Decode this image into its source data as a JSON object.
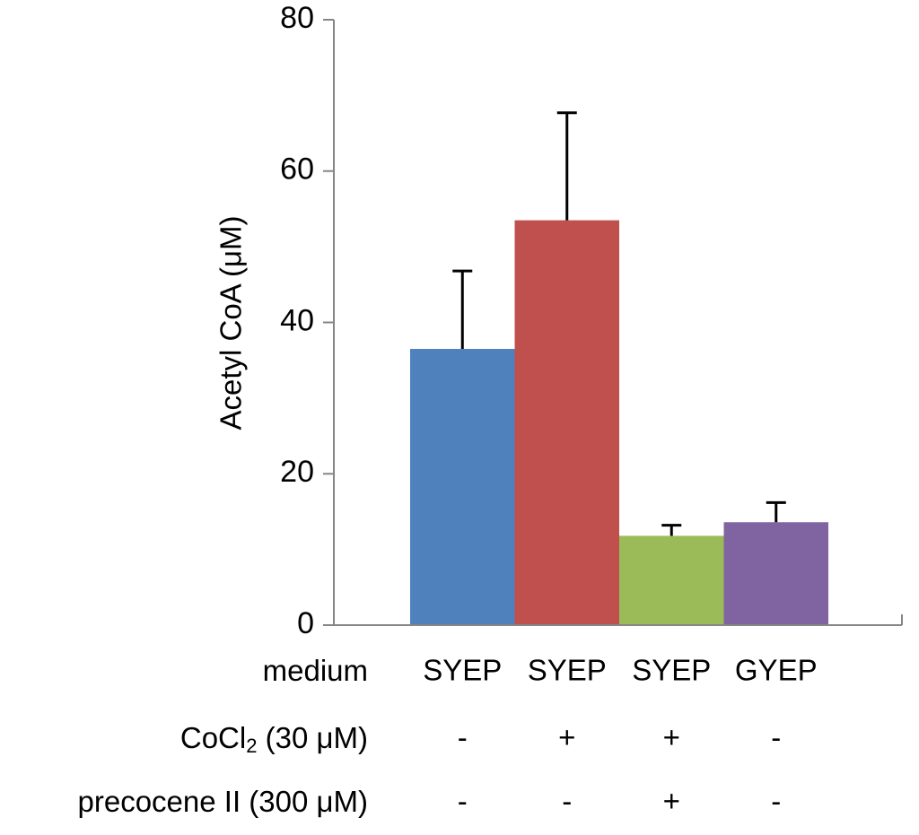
{
  "chart_data": {
    "type": "bar",
    "title": "",
    "xlabel": "",
    "ylabel": "Acetyl CoA (μM)",
    "ylim": [
      0,
      80
    ],
    "yticks": [
      "0",
      "20",
      "40",
      "60",
      "80"
    ],
    "grid": false,
    "categories": [
      "SYEP",
      "SYEP",
      "SYEP",
      "GYEP"
    ],
    "values": [
      36.5,
      53.5,
      11.8,
      13.6
    ],
    "error_upper": [
      10.3,
      14.2,
      1.4,
      2.6
    ],
    "colors": [
      "#4F81BD",
      "#C0504D",
      "#9BBB59",
      "#8064A2"
    ],
    "conditions": [
      {
        "label_main": "medium",
        "label_sub": "",
        "label_tail": "",
        "values": [
          "SYEP",
          "SYEP",
          "SYEP",
          "GYEP"
        ]
      },
      {
        "label_main": "CoCl",
        "label_sub": "2",
        "label_tail": " (30 μM)",
        "values": [
          "-",
          "+",
          "+",
          "-"
        ]
      },
      {
        "label_main": "precocene II (300 μM)",
        "label_sub": "",
        "label_tail": "",
        "values": [
          "-",
          "-",
          "+",
          "-"
        ]
      }
    ]
  }
}
